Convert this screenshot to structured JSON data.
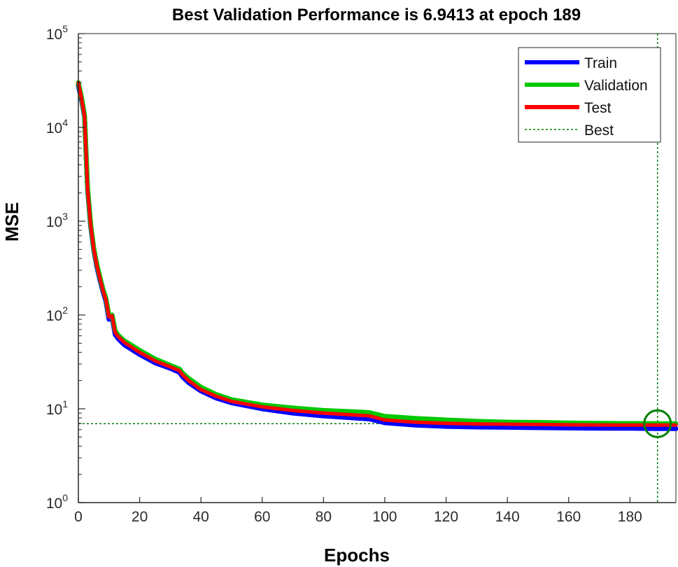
{
  "chart_data": {
    "type": "line",
    "title": "Best Validation Performance is 6.9413 at epoch 189",
    "xlabel": "Epochs",
    "ylabel": "MSE",
    "yscale": "log",
    "xlim": [
      0,
      195
    ],
    "ylim": [
      1,
      100000
    ],
    "grid": false,
    "legend_position": "top-right",
    "x_ticks": [
      0,
      20,
      40,
      60,
      80,
      100,
      120,
      140,
      160,
      180
    ],
    "y_ticks": [
      {
        "value": 1,
        "base": "10",
        "exp": "0"
      },
      {
        "value": 10,
        "base": "10",
        "exp": "1"
      },
      {
        "value": 100,
        "base": "10",
        "exp": "2"
      },
      {
        "value": 1000,
        "base": "10",
        "exp": "3"
      },
      {
        "value": 10000,
        "base": "10",
        "exp": "4"
      },
      {
        "value": 100000,
        "base": "10",
        "exp": "5"
      }
    ],
    "series": [
      {
        "name": "Train",
        "color": "#0000ff",
        "points": [
          [
            0,
            28000
          ],
          [
            1,
            20000
          ],
          [
            2,
            13000
          ],
          [
            3,
            2200
          ],
          [
            4,
            900
          ],
          [
            5,
            500
          ],
          [
            6,
            330
          ],
          [
            7,
            240
          ],
          [
            8,
            180
          ],
          [
            9,
            140
          ],
          [
            10,
            90
          ],
          [
            11,
            95
          ],
          [
            12,
            62
          ],
          [
            13,
            56
          ],
          [
            15,
            48
          ],
          [
            20,
            38
          ],
          [
            25,
            31
          ],
          [
            30,
            27
          ],
          [
            33,
            24.5
          ],
          [
            34,
            22
          ],
          [
            36,
            19
          ],
          [
            40,
            15.5
          ],
          [
            45,
            13
          ],
          [
            50,
            11.6
          ],
          [
            60,
            10
          ],
          [
            70,
            9
          ],
          [
            80,
            8.4
          ],
          [
            90,
            8
          ],
          [
            95,
            7.8
          ],
          [
            100,
            7.1
          ],
          [
            110,
            6.7
          ],
          [
            120,
            6.5
          ],
          [
            130,
            6.4
          ],
          [
            140,
            6.35
          ],
          [
            150,
            6.3
          ],
          [
            160,
            6.25
          ],
          [
            170,
            6.2
          ],
          [
            180,
            6.2
          ],
          [
            189,
            6.15
          ],
          [
            195,
            6.15
          ]
        ]
      },
      {
        "name": "Validation",
        "color": "#00c800",
        "points": [
          [
            0,
            30000
          ],
          [
            1,
            21000
          ],
          [
            2,
            13500
          ],
          [
            3,
            2300
          ],
          [
            4,
            950
          ],
          [
            5,
            520
          ],
          [
            6,
            350
          ],
          [
            7,
            255
          ],
          [
            8,
            190
          ],
          [
            9,
            150
          ],
          [
            10,
            98
          ],
          [
            11,
            100
          ],
          [
            12,
            68
          ],
          [
            13,
            61
          ],
          [
            15,
            53
          ],
          [
            20,
            42
          ],
          [
            25,
            34
          ],
          [
            30,
            29
          ],
          [
            33,
            26.5
          ],
          [
            34,
            24
          ],
          [
            36,
            21
          ],
          [
            40,
            17
          ],
          [
            45,
            14.2
          ],
          [
            50,
            12.5
          ],
          [
            60,
            11
          ],
          [
            70,
            10.2
          ],
          [
            80,
            9.6
          ],
          [
            90,
            9.3
          ],
          [
            95,
            9.1
          ],
          [
            100,
            8.3
          ],
          [
            110,
            7.9
          ],
          [
            120,
            7.6
          ],
          [
            130,
            7.35
          ],
          [
            140,
            7.2
          ],
          [
            150,
            7.15
          ],
          [
            160,
            7.05
          ],
          [
            170,
            7
          ],
          [
            180,
            6.97
          ],
          [
            189,
            6.9413
          ],
          [
            195,
            6.95
          ]
        ]
      },
      {
        "name": "Test",
        "color": "#ff0000",
        "points": [
          [
            0,
            30000
          ],
          [
            1,
            20500
          ],
          [
            2,
            13200
          ],
          [
            3,
            2250
          ],
          [
            4,
            920
          ],
          [
            5,
            510
          ],
          [
            6,
            340
          ],
          [
            7,
            248
          ],
          [
            8,
            185
          ],
          [
            9,
            145
          ],
          [
            10,
            95
          ],
          [
            11,
            98
          ],
          [
            12,
            65
          ],
          [
            13,
            59
          ],
          [
            15,
            51
          ],
          [
            20,
            40
          ],
          [
            25,
            32.5
          ],
          [
            30,
            28
          ],
          [
            33,
            25.5
          ],
          [
            34,
            23
          ],
          [
            36,
            20
          ],
          [
            40,
            16
          ],
          [
            45,
            13.6
          ],
          [
            50,
            12
          ],
          [
            60,
            10.5
          ],
          [
            70,
            9.6
          ],
          [
            80,
            9
          ],
          [
            90,
            8.6
          ],
          [
            95,
            8.4
          ],
          [
            100,
            7.6
          ],
          [
            110,
            7.2
          ],
          [
            120,
            7
          ],
          [
            130,
            6.9
          ],
          [
            140,
            6.85
          ],
          [
            150,
            6.8
          ],
          [
            160,
            6.75
          ],
          [
            170,
            6.72
          ],
          [
            180,
            6.7
          ],
          [
            189,
            6.7
          ],
          [
            195,
            6.7
          ]
        ]
      }
    ],
    "best": {
      "label": "Best",
      "epoch": 189,
      "value": 6.9413,
      "color": "#008000"
    }
  }
}
